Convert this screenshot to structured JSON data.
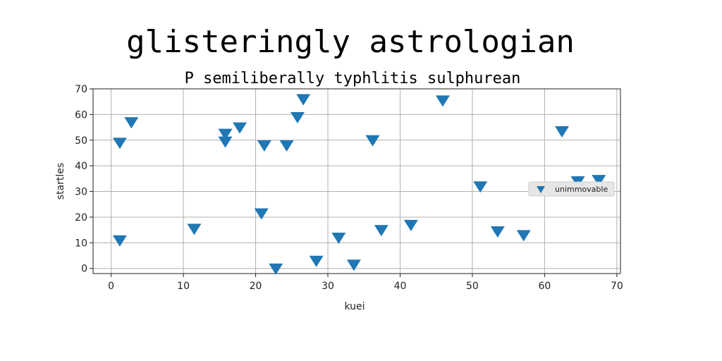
{
  "chart_data": {
    "type": "scatter",
    "title": "glisteringly astrologian",
    "subtitle": "P semiliberally typhlitis sulphurean",
    "xlabel": "kuei",
    "ylabel": "startles",
    "xlim": [
      -2.5,
      70.5
    ],
    "ylim": [
      -2,
      70
    ],
    "xticks": [
      0,
      10,
      20,
      30,
      40,
      50,
      60,
      70
    ],
    "yticks": [
      0,
      10,
      20,
      30,
      40,
      50,
      60,
      70
    ],
    "grid": true,
    "legend_position": "center-right",
    "marker": "triangle-down",
    "series": [
      {
        "name": "unimmovable",
        "color": "#1f77b4",
        "points": [
          [
            1.2,
            49
          ],
          [
            2.8,
            57
          ],
          [
            1.2,
            11
          ],
          [
            11.5,
            15.5
          ],
          [
            15.8,
            49.5
          ],
          [
            15.8,
            52.5
          ],
          [
            17.8,
            55
          ],
          [
            20.8,
            21.5
          ],
          [
            21.2,
            48
          ],
          [
            22.8,
            0
          ],
          [
            24.3,
            48
          ],
          [
            25.8,
            59
          ],
          [
            26.6,
            66
          ],
          [
            28.4,
            3
          ],
          [
            31.5,
            12
          ],
          [
            33.6,
            1.5
          ],
          [
            36.2,
            50
          ],
          [
            37.4,
            15
          ],
          [
            41.5,
            17
          ],
          [
            45.9,
            65.5
          ],
          [
            51.1,
            32
          ],
          [
            53.5,
            14.5
          ],
          [
            57.1,
            13
          ],
          [
            62.4,
            53.5
          ],
          [
            64.6,
            34
          ],
          [
            67.5,
            34.5
          ]
        ]
      }
    ]
  }
}
